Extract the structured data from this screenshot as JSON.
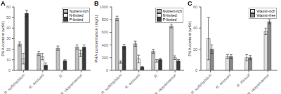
{
  "chart_data": [
    {
      "type": "bar",
      "title": "A",
      "y_label": "PHA content (wt%)",
      "categories": [
        "R. sulfidophilum",
        "R. aestuarii",
        "R.",
        "R. okayamaense"
      ],
      "series": [
        {
          "name": "Nutrient-rich",
          "color": "#c0c0c0",
          "values": [
            25,
            16,
            21,
            22
          ],
          "errors": [
            2,
            2,
            2,
            2
          ]
        },
        {
          "name": "N-limited",
          "color": "#efefef",
          "values": [
            11,
            13,
            0,
            16
          ],
          "errors": [
            5,
            3,
            2,
            3
          ]
        },
        {
          "name": "P-limited",
          "color": "#3a3a3a",
          "values": [
            54,
            5,
            9,
            22
          ],
          "errors": [
            3,
            2,
            1,
            2
          ]
        }
      ],
      "ylim": [
        0,
        60
      ],
      "yticks": [
        0,
        10,
        20,
        30,
        40,
        50,
        60
      ],
      "grid": false,
      "legend": "upper right"
    },
    {
      "type": "bar",
      "title": "B",
      "y_label": "PHA concentration (mg/L)",
      "categories": [
        "R. sulfidophilum",
        "R. aestuarii",
        "R.",
        "R. okayamaense"
      ],
      "series": [
        {
          "name": "Nutrient-rich",
          "color": "#c0c0c0",
          "values": [
            820,
            420,
            300,
            700
          ],
          "errors": [
            35,
            40,
            30,
            30
          ]
        },
        {
          "name": "N-limited",
          "color": "#efefef",
          "values": [
            130,
            180,
            150,
            200
          ],
          "errors": [
            20,
            60,
            20,
            30
          ]
        },
        {
          "name": "P-limited",
          "color": "#3a3a3a",
          "values": [
            380,
            50,
            170,
            150
          ],
          "errors": [
            30,
            10,
            20,
            20
          ]
        }
      ],
      "ylim": [
        0,
        1000
      ],
      "yticks": [
        0,
        200,
        400,
        600,
        800,
        1000
      ],
      "grid": false,
      "legend": "upper right"
    },
    {
      "type": "bar",
      "title": "C",
      "y_label": "PHA content (wt%)",
      "categories": [
        "R. sulfidophilum",
        "R. aestuarii",
        "R. thiosulf",
        "R. okayamaense"
      ],
      "series": [
        {
          "name": "Vitamin-rich",
          "color": "#e0e0e0",
          "values": [
            30,
            13,
            12,
            37
          ],
          "errors": [
            20,
            2,
            3,
            3
          ]
        },
        {
          "name": "Vitamin-free",
          "color": "#888888",
          "values": [
            20,
            13,
            12,
            46
          ],
          "errors": [
            4,
            2,
            2,
            2
          ]
        }
      ],
      "ylim": [
        0,
        60
      ],
      "yticks": [
        0,
        20,
        40,
        60
      ],
      "grid": false,
      "legend": "upper right"
    }
  ]
}
